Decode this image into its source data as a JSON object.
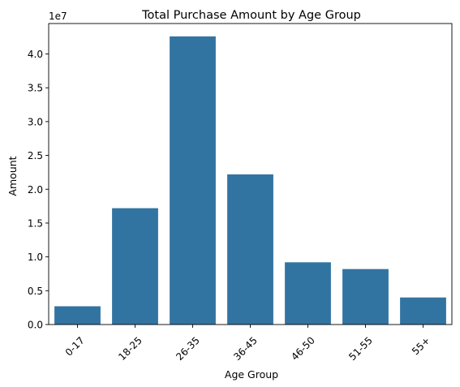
{
  "chart_data": {
    "type": "bar",
    "title": "Total Purchase Amount by Age Group",
    "xlabel": "Age Group",
    "ylabel": "Amount",
    "y_offset_label": "1e7",
    "categories": [
      "0-17",
      "18-25",
      "26-35",
      "36-45",
      "46-50",
      "51-55",
      "55+"
    ],
    "values": [
      0.27,
      1.72,
      4.26,
      2.22,
      0.92,
      0.82,
      0.4
    ],
    "ylim": [
      0,
      4.45
    ],
    "yticks": [
      0.0,
      0.5,
      1.0,
      1.5,
      2.0,
      2.5,
      3.0,
      3.5,
      4.0
    ],
    "ytick_labels": [
      "0.0",
      "0.5",
      "1.0",
      "1.5",
      "2.0",
      "2.5",
      "3.0",
      "3.5",
      "4.0"
    ],
    "bar_color": "#3274a1",
    "grid": false,
    "legend": "none"
  }
}
